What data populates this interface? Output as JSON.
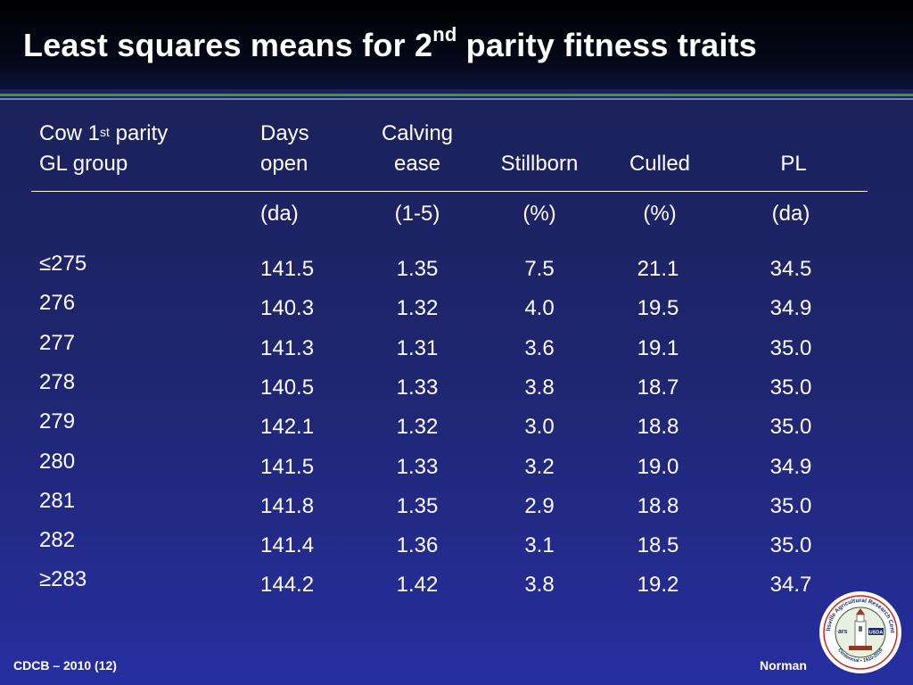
{
  "title": {
    "pre": "Least squares means for 2",
    "sup": "nd",
    "post": " parity fitness traits"
  },
  "table": {
    "headers": {
      "group_line1_pre": "Cow 1",
      "group_line1_sup": "st",
      "group_line1_post": " parity",
      "group_line2": "GL group",
      "days_open_line1": "Days",
      "days_open_line2": "open",
      "calving_ease_line1": "Calving",
      "calving_ease_line2": "ease",
      "stillborn": "Stillborn",
      "culled": "Culled",
      "pl": "PL"
    },
    "units": [
      "(da)",
      "(1-5)",
      "(%)",
      "(%)",
      "(da)"
    ],
    "groups": [
      "≤275",
      "276",
      "277",
      "278",
      "279",
      "280",
      "281",
      "282",
      "≥283"
    ],
    "rows": [
      [
        "141.5",
        "1.35",
        "7.5",
        "21.1",
        "34.5"
      ],
      [
        "140.3",
        "1.32",
        "4.0",
        "19.5",
        "34.9"
      ],
      [
        "141.3",
        "1.31",
        "3.6",
        "19.1",
        "35.0"
      ],
      [
        "140.5",
        "1.33",
        "3.8",
        "18.7",
        "35.0"
      ],
      [
        "142.1",
        "1.32",
        "3.0",
        "18.8",
        "35.0"
      ],
      [
        "141.5",
        "1.33",
        "3.2",
        "19.0",
        "34.9"
      ],
      [
        "141.8",
        "1.35",
        "2.9",
        "18.8",
        "35.0"
      ],
      [
        "141.4",
        "1.36",
        "3.1",
        "18.5",
        "35.0"
      ],
      [
        "144.2",
        "1.42",
        "3.8",
        "19.2",
        "34.7"
      ]
    ]
  },
  "footer": {
    "left": "CDCB – 2010 (12)",
    "right": "Norman"
  },
  "logo": {
    "arc_text": "Beltsville Agricultural Research Center",
    "bottom_text": "Centennial • 1910-2010",
    "badge": "USDA",
    "mark": "ars"
  }
}
